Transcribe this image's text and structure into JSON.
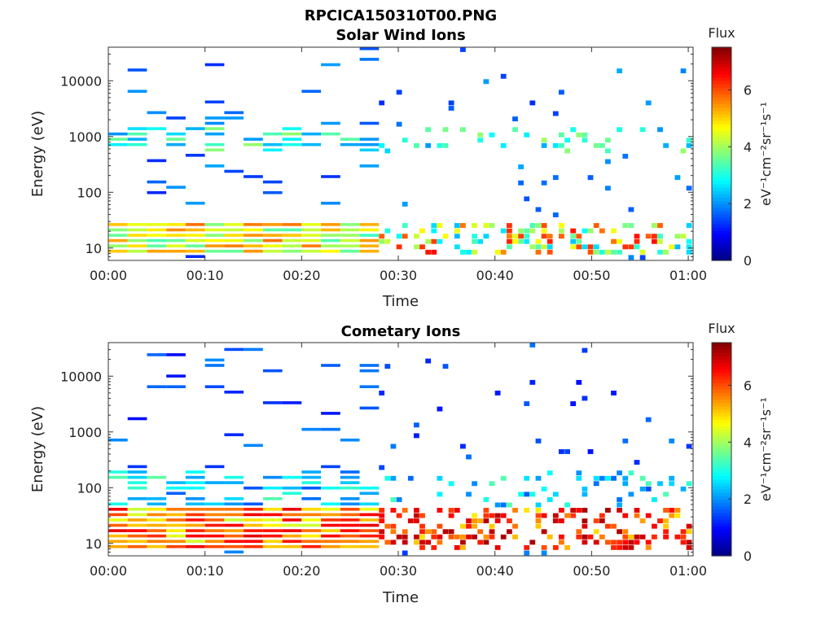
{
  "figure": {
    "title": "RPCICA150310T00.PNG"
  },
  "colorbar": {
    "title": "Flux",
    "unit_label": "eV⁻¹cm⁻²sr⁻¹s⁻¹",
    "ticks": [
      0,
      2,
      4,
      6
    ],
    "range": [
      0,
      7.5
    ],
    "colormap": "jet"
  },
  "chart_data": [
    {
      "type": "heatmap",
      "title": "Solar Wind Ions",
      "xlabel": "Time",
      "ylabel": "Energy (eV)",
      "yscale": "log",
      "ylim": [
        6,
        40000
      ],
      "xlim_minutes": [
        0,
        60.5
      ],
      "xticks": [
        "00:00",
        "00:10",
        "00:20",
        "00:30",
        "00:40",
        "00:50",
        "01:00"
      ],
      "yticks": [
        "10",
        "100",
        "1000",
        "10000"
      ],
      "value_range": [
        0,
        7.5
      ],
      "profile": {
        "low_energy_band_eV": [
          7,
          30
        ],
        "low_energy_flux_dense_period": 4.5,
        "low_energy_flux_sparse_period": 3.5,
        "mid_energy_band_eV": [
          500,
          1500
        ],
        "mid_energy_flux": 3.0,
        "high_energy_scatter_flux": 1.2,
        "dense_until_minute": 28,
        "peak_flux": 6.5
      }
    },
    {
      "type": "heatmap",
      "title": "Cometary Ions",
      "xlabel": "Time",
      "ylabel": "Energy (eV)",
      "yscale": "log",
      "ylim": [
        6,
        40000
      ],
      "xlim_minutes": [
        0,
        60.5
      ],
      "xticks": [
        "00:00",
        "00:10",
        "00:20",
        "00:30",
        "00:40",
        "00:50",
        "01:00"
      ],
      "yticks": [
        "10",
        "100",
        "1000",
        "10000"
      ],
      "value_range": [
        0,
        7.5
      ],
      "profile": {
        "low_energy_band_eV": [
          7,
          40
        ],
        "low_energy_flux_dense_period": 5.5,
        "low_energy_flux_sparse_period": 6.0,
        "mid_energy_band_eV": [
          40,
          200
        ],
        "mid_energy_flux": 2.5,
        "high_energy_scatter_flux": 1.0,
        "dense_until_minute": 28,
        "peak_flux": 7.2
      }
    }
  ]
}
